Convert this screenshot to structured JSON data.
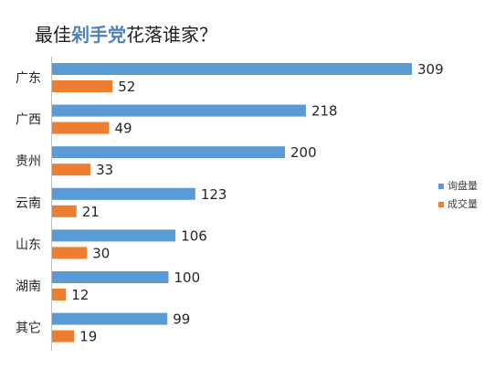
{
  "chart_data": {
    "type": "bar",
    "orientation": "horizontal",
    "title": {
      "prefix": "最佳",
      "highlight": "剁手党",
      "suffix": "花落谁家？"
    },
    "categories": [
      "广东",
      "广西",
      "贵州",
      "云南",
      "山东",
      "湖南",
      "其它"
    ],
    "series": [
      {
        "name": "询盘量",
        "color": "#5b9bd5",
        "values": [
          309,
          218,
          200,
          123,
          106,
          100,
          99
        ]
      },
      {
        "name": "成交量",
        "color": "#ed7d31",
        "values": [
          52,
          49,
          33,
          21,
          30,
          12,
          19
        ]
      }
    ],
    "xlim": [
      0,
      320
    ],
    "grid": false,
    "legend_position": "right",
    "data_labels": true
  }
}
